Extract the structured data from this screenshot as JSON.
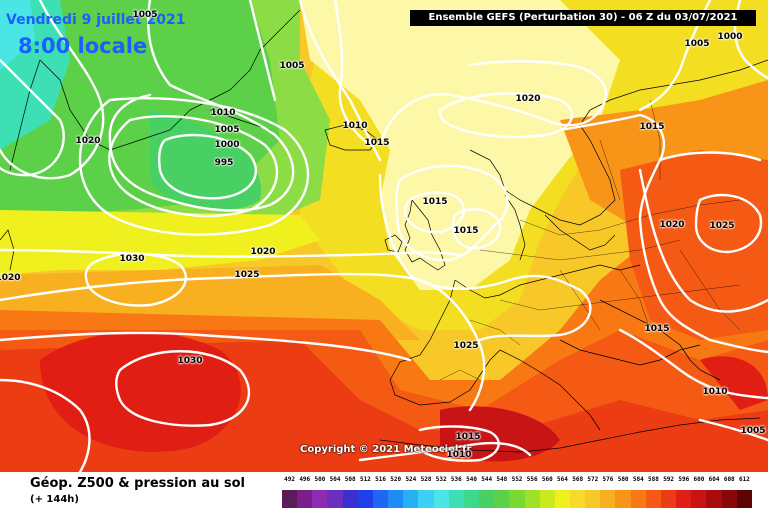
{
  "header": {
    "date": "Vendredi 9 juillet 2021",
    "local_time": "8:00 locale",
    "run_info": "Ensemble GEFS  (Perturbation 30)  -  06 Z du 03/07/2021"
  },
  "copyright": "Copyright © 2021 Meteociel.fr",
  "footer": {
    "title": "Géop. Z500 & pression au sol",
    "lead_time": "(+ 144h)"
  },
  "legend": {
    "labels": [
      "492",
      "496",
      "500",
      "504",
      "508",
      "512",
      "516",
      "520",
      "524",
      "528",
      "532",
      "536",
      "540",
      "544",
      "548",
      "552",
      "556",
      "560",
      "564",
      "568",
      "572",
      "576",
      "580",
      "584",
      "588",
      "592",
      "596",
      "600",
      "604",
      "608",
      "612"
    ],
    "colors": [
      "#5a1d5a",
      "#7a1f8a",
      "#8e2bb0",
      "#6a2fbf",
      "#3c2fd0",
      "#1f40e6",
      "#1f66f0",
      "#1f8cf5",
      "#28b0f5",
      "#3cd0f5",
      "#4ae6e6",
      "#3ce0b4",
      "#3cd88c",
      "#48d064",
      "#5cd048",
      "#7ad832",
      "#a0e026",
      "#c8ea1e",
      "#f0f01e",
      "#f6dc28",
      "#f8c828",
      "#f8b020",
      "#f89418",
      "#f87814",
      "#f45a14",
      "#ec3c14",
      "#e01e14",
      "#c81414",
      "#a80c0c",
      "#880808",
      "#5a0404"
    ]
  },
  "isobars": [
    {
      "label": "1005",
      "kind": "pressure"
    },
    {
      "label": "1000",
      "kind": "pressure"
    },
    {
      "label": "1005",
      "kind": "pressure"
    },
    {
      "label": "1005",
      "kind": "pressure"
    },
    {
      "label": "1020",
      "kind": "pressure"
    },
    {
      "label": "1010",
      "kind": "pressure"
    },
    {
      "label": "1005",
      "kind": "pressure"
    },
    {
      "label": "1000",
      "kind": "pressure"
    },
    {
      "label": "995",
      "kind": "pressure"
    },
    {
      "label": "1010",
      "kind": "pressure"
    },
    {
      "label": "1015",
      "kind": "pressure"
    },
    {
      "label": "1020",
      "kind": "pressure"
    },
    {
      "label": "1015",
      "kind": "pressure"
    },
    {
      "label": "1015",
      "kind": "pressure"
    },
    {
      "label": "1015",
      "kind": "pressure"
    },
    {
      "label": "1020",
      "kind": "pressure"
    },
    {
      "label": "1030",
      "kind": "pressure"
    },
    {
      "label": "1020",
      "kind": "pressure"
    },
    {
      "label": "1025",
      "kind": "pressure"
    },
    {
      "label": "1020",
      "kind": "pressure"
    },
    {
      "label": "1025",
      "kind": "pressure"
    },
    {
      "label": "1015",
      "kind": "pressure"
    },
    {
      "label": "1025",
      "kind": "pressure"
    },
    {
      "label": "1030",
      "kind": "pressure"
    },
    {
      "label": "1010",
      "kind": "pressure"
    },
    {
      "label": "1005",
      "kind": "pressure"
    },
    {
      "label": "1015",
      "kind": "pressure"
    },
    {
      "label": "1010",
      "kind": "pressure"
    }
  ]
}
